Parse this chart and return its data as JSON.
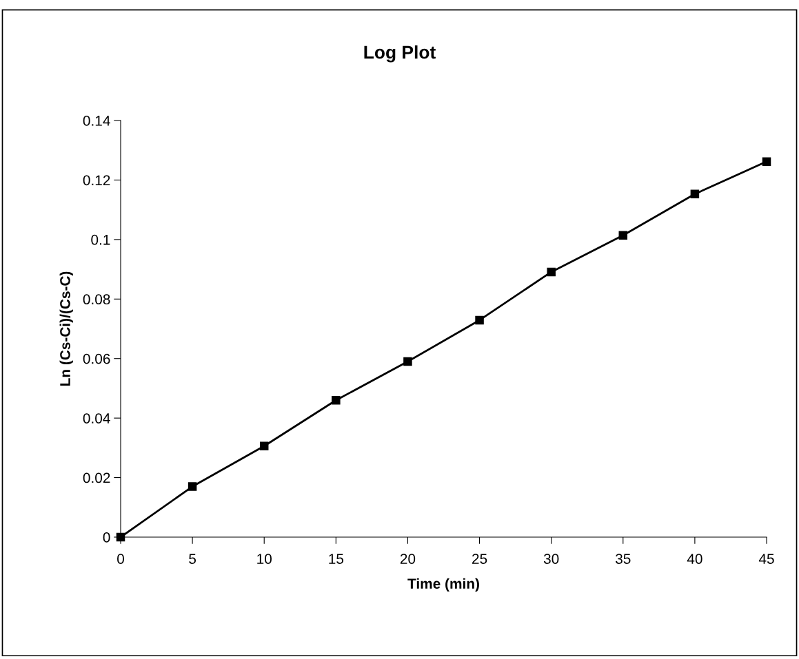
{
  "chart_data": {
    "type": "line",
    "title": "Log Plot",
    "xlabel": "Time (min)",
    "ylabel": "Ln (Cs-Ci)/(Cs-C)",
    "x": [
      0,
      5,
      10,
      15,
      20,
      25,
      30,
      35,
      40,
      45
    ],
    "series": [
      {
        "color": "#000000",
        "values": [
          0,
          0.017,
          0.0306,
          0.046,
          0.059,
          0.0729,
          0.0891,
          0.1014,
          0.1153,
          0.1262
        ]
      }
    ],
    "marker": "square",
    "line_style": "solid",
    "grid": false,
    "legend": false,
    "xlim": [
      0,
      45
    ],
    "xticks": [
      0,
      5,
      10,
      15,
      20,
      25,
      30,
      35,
      40,
      45
    ],
    "ylim": [
      0,
      0.14
    ],
    "yticks": [
      0,
      0.02,
      0.04,
      0.06,
      0.08,
      0.1,
      0.12,
      0.14
    ]
  }
}
